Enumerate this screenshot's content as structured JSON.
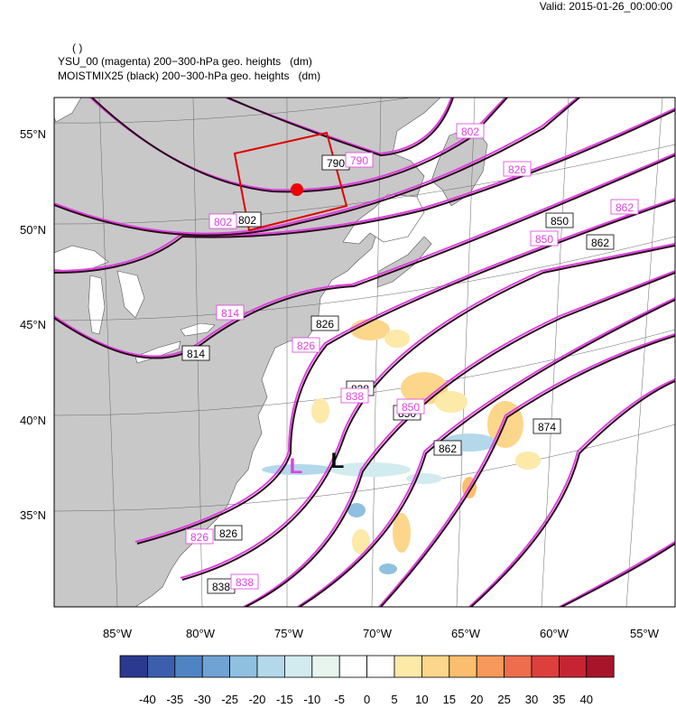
{
  "valid_time": "Valid: 2015-01-26_00:00:00",
  "header": {
    "line1": "( )",
    "line2": "YSU_00 (magenta) 200−300-hPa geo. heights   (dm)",
    "line3": "MOISTMIX25 (black) 200−300-hPa geo. heights   (dm)"
  },
  "lat_labels": [
    "55°N",
    "50°N",
    "45°N",
    "40°N",
    "35°N"
  ],
  "lon_labels": [
    "85°W",
    "80°W",
    "75°W",
    "70°W",
    "65°W",
    "60°W",
    "55°W"
  ],
  "black_contour_labels": [
    "790",
    "802",
    "814",
    "826",
    "838",
    "850",
    "862",
    "874",
    "862",
    "850",
    "838",
    "826"
  ],
  "magenta_contour_labels": [
    "790",
    "802",
    "802",
    "814",
    "826",
    "826",
    "838",
    "850",
    "850",
    "862",
    "826",
    "838"
  ],
  "low_markers": {
    "magenta": "L",
    "black": "L"
  },
  "colorbar": {
    "labels": [
      "-40",
      "-35",
      "-30",
      "-25",
      "-20",
      "-15",
      "-10",
      "-5",
      "0",
      "5",
      "10",
      "15",
      "20",
      "25",
      "30",
      "35",
      "40"
    ],
    "colors": [
      "#2b3a8f",
      "#3b5fad",
      "#4f84c4",
      "#6fa3d3",
      "#8fc0e0",
      "#b3d8ea",
      "#d2ebef",
      "#e8f5ef",
      "#ffffff",
      "#ffffff",
      "#fde9a8",
      "#fcd68a",
      "#fbbe6e",
      "#f7995a",
      "#ee6d4d",
      "#dd3f3c",
      "#c52532",
      "#a8142a"
    ]
  },
  "map_colors": {
    "land": "#c8c8c8",
    "water": "#ffffff",
    "black_contour": "#000000",
    "magenta_contour": "#e040e0",
    "box": "#e00000",
    "dot": "#ee0000"
  }
}
